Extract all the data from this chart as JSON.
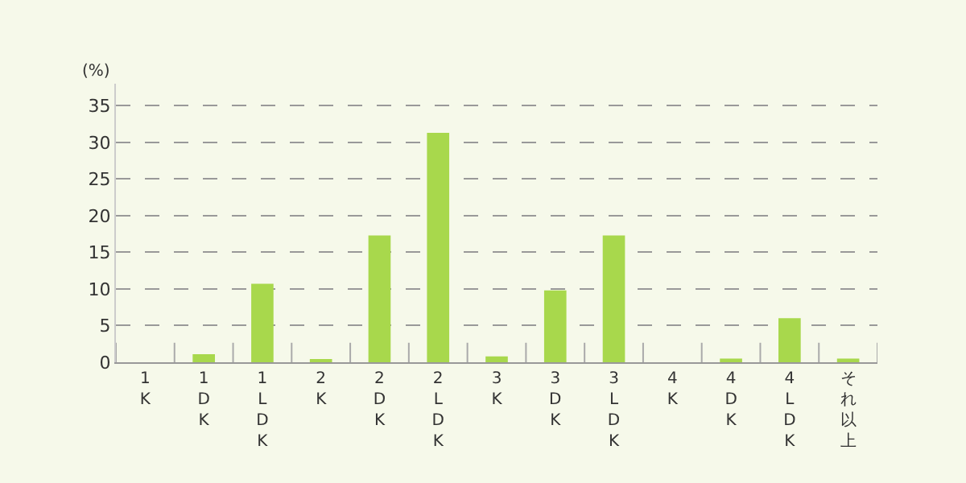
{
  "chart_data": {
    "type": "bar",
    "ylabel": "(%)",
    "categories": [
      "1K",
      "1DK",
      "1LDK",
      "2K",
      "2DK",
      "2LDK",
      "3K",
      "3DK",
      "3LDK",
      "4K",
      "4DK",
      "4LDK",
      "それ以上"
    ],
    "values": [
      0,
      1.1,
      10.7,
      0.3,
      17.3,
      31.3,
      0.8,
      9.8,
      17.3,
      0,
      0.5,
      6.0,
      0.5
    ],
    "color": "#a8d84c",
    "ylim": [
      0,
      38
    ],
    "yticks": [
      0,
      5,
      10,
      15,
      20,
      25,
      30,
      35
    ],
    "grid": "y"
  }
}
